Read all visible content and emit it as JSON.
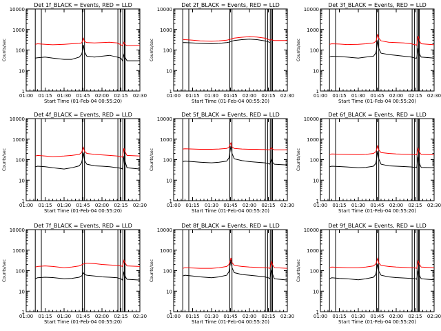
{
  "figure": {
    "xlabel": "Start Time (01-Feb-04 00:55:20)",
    "ylabel": "Counts/sec",
    "xticks": [
      "01:00",
      "01:15",
      "01:30",
      "01:45",
      "02:00",
      "02:15",
      "02:30"
    ],
    "yticks": [
      "1",
      "10",
      "100",
      "1000",
      "10000"
    ],
    "colors": {
      "events": "#000000",
      "lld": "#ff0000",
      "frame": "#000000"
    }
  },
  "chart_data": [
    {
      "type": "line",
      "title": "Det 1f_BLACK = Events, RED = LLD",
      "xlabel": "Start Time (01-Feb-04 00:55:20)",
      "ylabel": "Counts/sec",
      "ylim": [
        1,
        10000
      ],
      "yscale": "log",
      "x": [
        1.12,
        1.15,
        1.25,
        1.35,
        1.5,
        1.6,
        1.7,
        1.73,
        1.74,
        1.755,
        1.77,
        1.8,
        1.9,
        2.0,
        2.1,
        2.2,
        2.25,
        2.27,
        2.29,
        2.31,
        2.33,
        2.5
      ],
      "markers": [
        1.12,
        1.2,
        1.74,
        1.77,
        2.21,
        2.24,
        2.275,
        2.295,
        2.305
      ],
      "series": [
        {
          "name": "LLD",
          "values": [
            190,
            200,
            190,
            180,
            190,
            200,
            210,
            220,
            260,
            380,
            260,
            230,
            220,
            230,
            240,
            220,
            180,
            160,
            240,
            180,
            160,
            170
          ]
        },
        {
          "name": "Events",
          "values": [
            40,
            42,
            45,
            40,
            35,
            35,
            45,
            60,
            80,
            180,
            80,
            50,
            45,
            50,
            55,
            45,
            40,
            30,
            60,
            40,
            30,
            30
          ]
        }
      ]
    },
    {
      "type": "line",
      "title": "Det 2f_BLACK = Events, RED = LLD",
      "xlabel": "Start Time (01-Feb-04 00:55:20)",
      "ylabel": "Counts/sec",
      "ylim": [
        1,
        10000
      ],
      "yscale": "log",
      "x": [
        1.12,
        1.15,
        1.25,
        1.35,
        1.5,
        1.6,
        1.7,
        1.73,
        1.74,
        1.755,
        1.77,
        1.8,
        1.9,
        2.0,
        2.1,
        2.2,
        2.25,
        2.27,
        2.29,
        2.31,
        2.33,
        2.5
      ],
      "markers": [
        1.12,
        1.2,
        1.74,
        1.77,
        2.21,
        2.24,
        2.275,
        2.295,
        2.305
      ],
      "series": [
        {
          "name": "LLD",
          "values": [
            330,
            320,
            300,
            280,
            270,
            280,
            300,
            320,
            330,
            340,
            360,
            380,
            420,
            450,
            430,
            380,
            330,
            300,
            320,
            300,
            290,
            290
          ]
        },
        {
          "name": "Events",
          "values": [
            230,
            230,
            220,
            210,
            200,
            210,
            230,
            240,
            250,
            260,
            270,
            290,
            320,
            340,
            320,
            280,
            250,
            230,
            0,
            0,
            0,
            0
          ]
        }
      ]
    },
    {
      "type": "line",
      "title": "Det 3f_BLACK = Events, RED = LLD",
      "xlabel": "Start Time (01-Feb-04 00:55:20)",
      "ylabel": "Counts/sec",
      "ylim": [
        1,
        10000
      ],
      "yscale": "log",
      "x": [
        1.12,
        1.15,
        1.25,
        1.35,
        1.5,
        1.6,
        1.7,
        1.73,
        1.74,
        1.755,
        1.77,
        1.8,
        1.9,
        2.0,
        2.1,
        2.2,
        2.25,
        2.27,
        2.29,
        2.31,
        2.33,
        2.5
      ],
      "markers": [
        1.12,
        1.2,
        1.74,
        1.77,
        2.21,
        2.24,
        2.275,
        2.295,
        2.305
      ],
      "series": [
        {
          "name": "LLD",
          "values": [
            190,
            200,
            195,
            185,
            190,
            200,
            220,
            260,
            320,
            600,
            380,
            280,
            240,
            230,
            220,
            200,
            180,
            170,
            480,
            260,
            200,
            180
          ]
        },
        {
          "name": "Events",
          "values": [
            45,
            50,
            48,
            45,
            40,
            45,
            50,
            70,
            100,
            300,
            120,
            70,
            60,
            55,
            50,
            45,
            40,
            40,
            120,
            60,
            45,
            40
          ]
        }
      ]
    },
    {
      "type": "line",
      "title": "Det 4f_BLACK = Events, RED = LLD",
      "xlabel": "Start Time (01-Feb-04 00:55:20)",
      "ylabel": "Counts/sec",
      "ylim": [
        1,
        10000
      ],
      "yscale": "log",
      "x": [
        1.12,
        1.15,
        1.25,
        1.35,
        1.5,
        1.6,
        1.7,
        1.73,
        1.74,
        1.755,
        1.77,
        1.8,
        1.9,
        2.0,
        2.1,
        2.2,
        2.25,
        2.27,
        2.29,
        2.31,
        2.33,
        2.5
      ],
      "markers": [
        1.12,
        1.2,
        1.74,
        1.77,
        2.21,
        2.24,
        2.275,
        2.295,
        2.305
      ],
      "series": [
        {
          "name": "LLD",
          "values": [
            150,
            160,
            150,
            140,
            150,
            160,
            180,
            220,
            280,
            400,
            260,
            200,
            180,
            170,
            160,
            150,
            140,
            130,
            360,
            220,
            160,
            150
          ]
        },
        {
          "name": "Events",
          "values": [
            45,
            48,
            45,
            40,
            35,
            40,
            50,
            70,
            100,
            220,
            90,
            60,
            50,
            48,
            45,
            40,
            38,
            35,
            150,
            70,
            40,
            35
          ]
        }
      ]
    },
    {
      "type": "line",
      "title": "Det 5f_BLACK = Events, RED = LLD",
      "xlabel": "Start Time (01-Feb-04 00:55:20)",
      "ylabel": "Counts/sec",
      "ylim": [
        1,
        10000
      ],
      "yscale": "log",
      "x": [
        1.12,
        1.15,
        1.25,
        1.35,
        1.5,
        1.6,
        1.7,
        1.73,
        1.74,
        1.755,
        1.77,
        1.8,
        1.9,
        2.0,
        2.1,
        2.2,
        2.25,
        2.27,
        2.29,
        2.31,
        2.33,
        2.5
      ],
      "markers": [
        1.12,
        1.2,
        1.74,
        1.77,
        2.21,
        2.24,
        2.275,
        2.295,
        2.305
      ],
      "series": [
        {
          "name": "LLD",
          "values": [
            330,
            340,
            330,
            320,
            320,
            330,
            350,
            400,
            500,
            650,
            420,
            350,
            330,
            320,
            320,
            310,
            300,
            300,
            380,
            320,
            300,
            300
          ]
        },
        {
          "name": "Events",
          "values": [
            80,
            85,
            80,
            75,
            70,
            75,
            85,
            120,
            200,
            480,
            200,
            110,
            90,
            80,
            75,
            70,
            65,
            60,
            100,
            70,
            60,
            55
          ]
        }
      ]
    },
    {
      "type": "line",
      "title": "Det 6f_BLACK = Events, RED = LLD",
      "xlabel": "Start Time (01-Feb-04 00:55:20)",
      "ylabel": "Counts/sec",
      "ylim": [
        1,
        10000
      ],
      "yscale": "log",
      "x": [
        1.12,
        1.15,
        1.25,
        1.35,
        1.5,
        1.6,
        1.7,
        1.73,
        1.74,
        1.755,
        1.77,
        1.8,
        1.9,
        2.0,
        2.1,
        2.2,
        2.25,
        2.27,
        2.29,
        2.31,
        2.33,
        2.5
      ],
      "markers": [
        1.12,
        1.2,
        1.74,
        1.77,
        2.21,
        2.24,
        2.275,
        2.295,
        2.305
      ],
      "series": [
        {
          "name": "LLD",
          "values": [
            180,
            190,
            185,
            180,
            175,
            180,
            200,
            240,
            300,
            480,
            300,
            220,
            200,
            190,
            185,
            180,
            175,
            170,
            360,
            220,
            180,
            170
          ]
        },
        {
          "name": "Events",
          "values": [
            45,
            48,
            46,
            44,
            40,
            42,
            48,
            65,
            100,
            260,
            110,
            60,
            50,
            48,
            46,
            44,
            42,
            40,
            140,
            60,
            42,
            40
          ]
        }
      ]
    },
    {
      "type": "line",
      "title": "Det 7f_BLACK = Events, RED = LLD",
      "xlabel": "Start Time (01-Feb-04 00:55:20)",
      "ylabel": "Counts/sec",
      "ylim": [
        1,
        10000
      ],
      "yscale": "log",
      "x": [
        1.12,
        1.15,
        1.25,
        1.35,
        1.5,
        1.6,
        1.7,
        1.73,
        1.74,
        1.755,
        1.77,
        1.8,
        1.9,
        2.0,
        2.1,
        2.2,
        2.25,
        2.27,
        2.29,
        2.31,
        2.33,
        2.5
      ],
      "markers": [
        1.12,
        1.2,
        1.74,
        1.77,
        2.21,
        2.24,
        2.275,
        2.295,
        2.305
      ],
      "series": [
        {
          "name": "LLD",
          "values": [
            150,
            160,
            170,
            160,
            140,
            150,
            170,
            190,
            200,
            210,
            220,
            230,
            220,
            200,
            190,
            180,
            170,
            160,
            320,
            220,
            170,
            160
          ]
        },
        {
          "name": "Events",
          "values": [
            40,
            45,
            48,
            46,
            40,
            42,
            48,
            55,
            60,
            80,
            65,
            60,
            55,
            50,
            48,
            45,
            40,
            35,
            90,
            50,
            38,
            35
          ]
        }
      ]
    },
    {
      "type": "line",
      "title": "Det 8f_BLACK = Events, RED = LLD",
      "xlabel": "Start Time (01-Feb-04 00:55:20)",
      "ylabel": "Counts/sec",
      "ylim": [
        1,
        10000
      ],
      "yscale": "log",
      "x": [
        1.12,
        1.15,
        1.25,
        1.35,
        1.5,
        1.6,
        1.7,
        1.73,
        1.74,
        1.755,
        1.77,
        1.8,
        1.9,
        2.0,
        2.1,
        2.2,
        2.25,
        2.27,
        2.29,
        2.31,
        2.33,
        2.5
      ],
      "markers": [
        1.12,
        1.2,
        1.74,
        1.77,
        2.21,
        2.24,
        2.275,
        2.295,
        2.305
      ],
      "series": [
        {
          "name": "LLD",
          "values": [
            130,
            140,
            135,
            130,
            130,
            140,
            160,
            200,
            260,
            420,
            250,
            180,
            160,
            150,
            145,
            140,
            135,
            130,
            280,
            180,
            140,
            130
          ]
        },
        {
          "name": "Events",
          "values": [
            55,
            60,
            55,
            50,
            45,
            50,
            60,
            90,
            150,
            330,
            140,
            80,
            65,
            60,
            55,
            50,
            45,
            40,
            110,
            60,
            40,
            35
          ]
        }
      ]
    },
    {
      "type": "line",
      "title": "Det 9f_BLACK = Events, RED = LLD",
      "xlabel": "Start Time (01-Feb-04 00:55:20)",
      "ylabel": "Counts/sec",
      "ylim": [
        1,
        10000
      ],
      "yscale": "log",
      "x": [
        1.12,
        1.15,
        1.25,
        1.35,
        1.5,
        1.6,
        1.7,
        1.73,
        1.74,
        1.755,
        1.77,
        1.8,
        1.9,
        2.0,
        2.1,
        2.2,
        2.25,
        2.27,
        2.29,
        2.31,
        2.33,
        2.5
      ],
      "markers": [
        1.12,
        1.2,
        1.74,
        1.77,
        2.21,
        2.24,
        2.275,
        2.295,
        2.305
      ],
      "series": [
        {
          "name": "LLD",
          "values": [
            140,
            150,
            145,
            140,
            140,
            150,
            170,
            210,
            260,
            400,
            240,
            180,
            160,
            150,
            145,
            140,
            135,
            130,
            300,
            190,
            150,
            140
          ]
        },
        {
          "name": "Events",
          "values": [
            40,
            45,
            42,
            40,
            36,
            40,
            48,
            65,
            100,
            220,
            95,
            60,
            50,
            46,
            44,
            42,
            40,
            38,
            100,
            55,
            40,
            36
          ]
        }
      ]
    }
  ]
}
